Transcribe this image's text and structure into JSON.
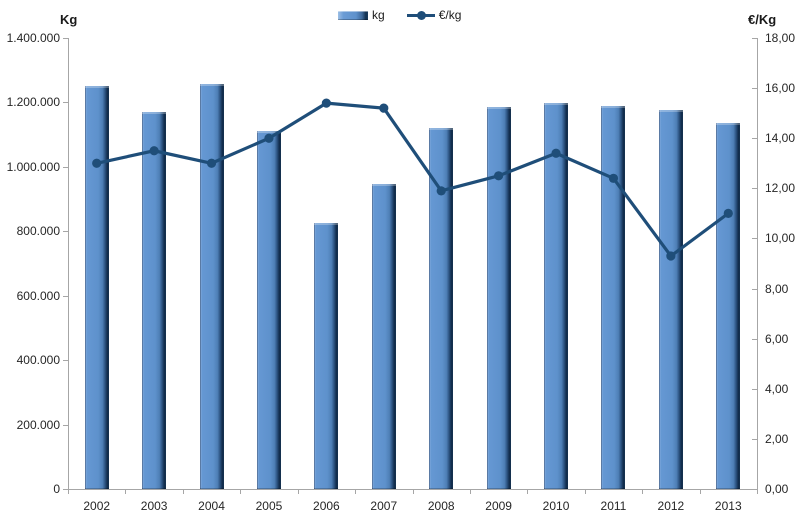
{
  "chart_data": {
    "type": "bar",
    "subtype": "combo-bar-line-dual-axis",
    "title": "",
    "categories": [
      "2002",
      "2003",
      "2004",
      "2005",
      "2006",
      "2007",
      "2008",
      "2009",
      "2010",
      "2011",
      "2012",
      "2013"
    ],
    "series": [
      {
        "name": "kg",
        "type": "bar",
        "axis": "left",
        "values": [
          1252000,
          1170000,
          1258000,
          1110000,
          825000,
          948000,
          1120000,
          1185000,
          1198000,
          1188000,
          1178000,
          1135000
        ]
      },
      {
        "name": "€/kg",
        "type": "line",
        "axis": "right",
        "values": [
          13.0,
          13.5,
          13.0,
          14.0,
          15.4,
          15.2,
          11.9,
          12.5,
          13.4,
          12.4,
          9.3,
          11.0
        ]
      }
    ],
    "left_axis": {
      "title": "Kg",
      "ylim": [
        0,
        1400000
      ],
      "tick_step": 200000,
      "tick_labels": [
        "0",
        "200.000",
        "400.000",
        "600.000",
        "800.000",
        "1.000.000",
        "1.200.000",
        "1.400.000"
      ]
    },
    "right_axis": {
      "title": "€/Kg",
      "ylim": [
        0,
        18
      ],
      "tick_step": 2,
      "tick_labels": [
        "0,00",
        "2,00",
        "4,00",
        "6,00",
        "8,00",
        "10,00",
        "12,00",
        "14,00",
        "16,00",
        "18,00"
      ]
    },
    "legend": {
      "position": "top-center",
      "items": [
        "kg",
        "€/kg"
      ]
    },
    "grid": false,
    "colors": {
      "bar_fill": "#5E91CC",
      "bar_highlight": "#8FB2DF",
      "bar_shadow": "#112C4C",
      "line": "#1F4E79",
      "axis_line": "#A6A6A6",
      "text": "#262626"
    }
  }
}
